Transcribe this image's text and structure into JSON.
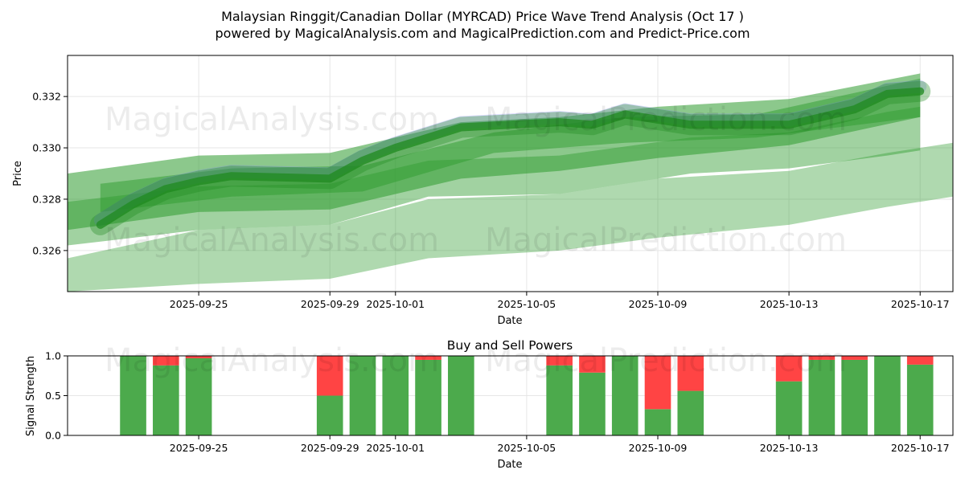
{
  "title": "Malaysian Ringgit/Canadian Dollar (MYRCAD) Price Wave Trend Analysis (Oct 17 )",
  "subtitle": "powered by MagicalAnalysis.com and MagicalPrediction.com and Predict-Price.com",
  "watermarks": [
    "MagicalAnalysis.com",
    "MagicalPrediction.com"
  ],
  "colors": {
    "band": "#2e9b2e",
    "wave": "#1f8a1f",
    "wave_shadow": "#7a7aff",
    "buy": "#4caa4c",
    "sell": "#ff4444",
    "grid": "#e6e6e6"
  },
  "chart_data": [
    {
      "type": "area",
      "xlabel": "Date",
      "ylabel": "Price",
      "xlim": [
        "2025-09-21",
        "2025-10-18"
      ],
      "ylim": [
        0.3244,
        0.3336
      ],
      "x_ticks": [
        "2025-09-25",
        "2025-09-29",
        "2025-10-01",
        "2025-10-05",
        "2025-10-09",
        "2025-10-13",
        "2025-10-17"
      ],
      "y_ticks": [
        0.326,
        0.328,
        0.33,
        0.332
      ],
      "y_tick_labels": [
        "0.326",
        "0.328",
        "0.330",
        "0.332"
      ],
      "grid": true,
      "price_wave": {
        "x": [
          "2025-09-22",
          "2025-09-23",
          "2025-09-24",
          "2025-09-25",
          "2025-09-26",
          "2025-09-29",
          "2025-09-30",
          "2025-10-01",
          "2025-10-02",
          "2025-10-03",
          "2025-10-06",
          "2025-10-07",
          "2025-10-08",
          "2025-10-09",
          "2025-10-10",
          "2025-10-13",
          "2025-10-14",
          "2025-10-15",
          "2025-10-16",
          "2025-10-17"
        ],
        "y": [
          0.327,
          0.3278,
          0.3284,
          0.3287,
          0.3289,
          0.3288,
          0.3295,
          0.33,
          0.3304,
          0.3308,
          0.331,
          0.3309,
          0.3313,
          0.3311,
          0.3309,
          0.3309,
          0.3312,
          0.3315,
          0.3321,
          0.3322
        ]
      },
      "bands": [
        {
          "x": [
            "2025-09-21",
            "2025-09-25",
            "2025-09-29",
            "2025-10-03",
            "2025-10-06",
            "2025-10-09",
            "2025-10-13",
            "2025-10-17"
          ],
          "lower": [
            0.3268,
            0.3275,
            0.3276,
            0.3288,
            0.3291,
            0.3296,
            0.3301,
            0.3312
          ],
          "upper": [
            0.329,
            0.3297,
            0.3298,
            0.331,
            0.3312,
            0.3316,
            0.3319,
            0.3329
          ]
        },
        {
          "x": [
            "2025-09-22",
            "2025-09-26",
            "2025-09-30",
            "2025-10-04",
            "2025-10-08",
            "2025-10-12",
            "2025-10-17"
          ],
          "lower": [
            0.3275,
            0.3281,
            0.3283,
            0.3298,
            0.3302,
            0.3304,
            0.3312
          ],
          "upper": [
            0.3286,
            0.3292,
            0.3293,
            0.3306,
            0.3312,
            0.3313,
            0.3327
          ]
        },
        {
          "x": [
            "2025-09-21",
            "2025-09-25",
            "2025-09-29",
            "2025-10-02",
            "2025-10-06",
            "2025-10-10",
            "2025-10-13",
            "2025-10-16",
            "2025-10-17"
          ],
          "lower": [
            0.3262,
            0.3268,
            0.327,
            0.3281,
            0.3282,
            0.329,
            0.3292,
            0.3297,
            0.3299
          ],
          "upper": [
            0.3279,
            0.3285,
            0.3286,
            0.3295,
            0.3297,
            0.3304,
            0.3306,
            0.3314,
            0.3316
          ]
        },
        {
          "x": [
            "2025-09-21",
            "2025-09-25",
            "2025-09-29",
            "2025-10-02",
            "2025-10-06",
            "2025-10-09",
            "2025-10-13",
            "2025-10-16",
            "2025-10-18"
          ],
          "lower": [
            0.3244,
            0.3247,
            0.3249,
            0.3257,
            0.326,
            0.3265,
            0.327,
            0.3277,
            0.3281
          ],
          "upper": [
            0.3257,
            0.3268,
            0.327,
            0.328,
            0.3282,
            0.3288,
            0.3291,
            0.3298,
            0.3302
          ]
        }
      ]
    },
    {
      "type": "bar",
      "title": "Buy and Sell Powers",
      "xlabel": "Date",
      "ylabel": "Signal Strength",
      "ylim": [
        0,
        1
      ],
      "y_ticks": [
        0.0,
        0.5,
        1.0
      ],
      "y_tick_labels": [
        "0.0",
        "0.5",
        "1.0"
      ],
      "x_ticks": [
        "2025-09-25",
        "2025-09-29",
        "2025-10-01",
        "2025-10-05",
        "2025-10-09",
        "2025-10-13",
        "2025-10-17"
      ],
      "grid": true,
      "categories": [
        "2025-09-23",
        "2025-09-24",
        "2025-09-25",
        "2025-09-29",
        "2025-09-30",
        "2025-10-01",
        "2025-10-02",
        "2025-10-03",
        "2025-10-06",
        "2025-10-07",
        "2025-10-08",
        "2025-10-09",
        "2025-10-10",
        "2025-10-13",
        "2025-10-14",
        "2025-10-15",
        "2025-10-16",
        "2025-10-17"
      ],
      "series": [
        {
          "values": [
            1.0,
            0.88,
            0.97,
            0.5,
            1.0,
            1.0,
            0.95,
            1.0,
            0.88,
            0.79,
            1.0,
            0.33,
            0.56,
            0.68,
            0.95,
            0.95,
            1.0,
            0.89
          ]
        },
        {
          "values": [
            0.0,
            0.12,
            0.03,
            0.5,
            0.0,
            0.0,
            0.05,
            0.0,
            0.12,
            0.21,
            0.0,
            0.67,
            0.44,
            0.32,
            0.05,
            0.05,
            0.0,
            0.11
          ]
        }
      ]
    }
  ]
}
